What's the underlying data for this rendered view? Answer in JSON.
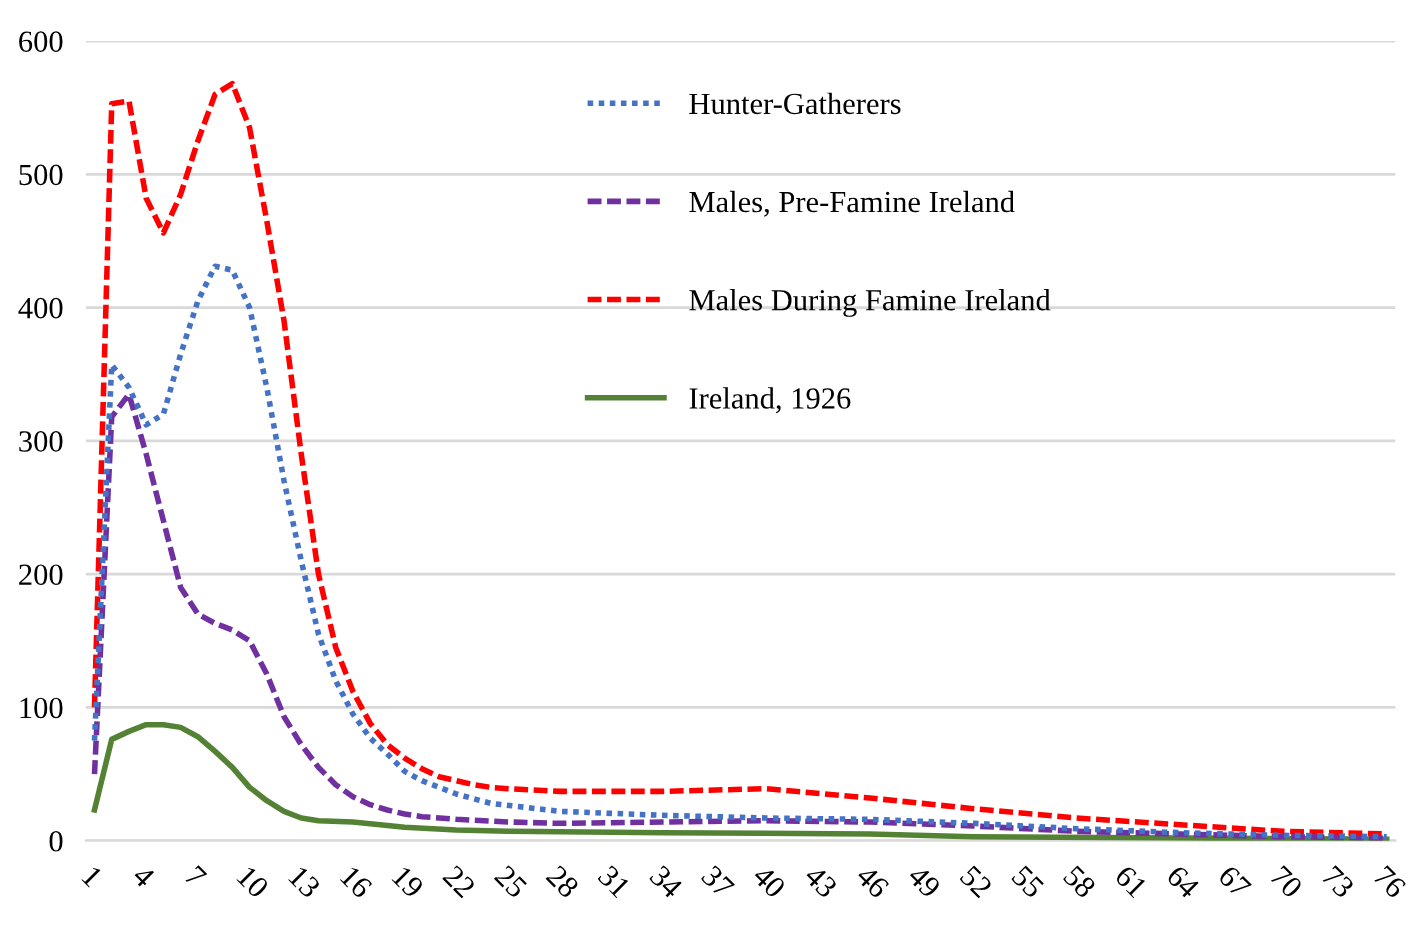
{
  "chart_data": {
    "type": "line",
    "xlim": [
      0.5,
      76.5
    ],
    "xticks": [
      1,
      4,
      7,
      10,
      13,
      16,
      19,
      22,
      25,
      28,
      31,
      34,
      37,
      40,
      43,
      46,
      49,
      52,
      55,
      58,
      61,
      64,
      67,
      70,
      73,
      76
    ],
    "ylim": [
      0,
      600
    ],
    "yticks": [
      0,
      100,
      200,
      300,
      400,
      500,
      600
    ],
    "grid": "y",
    "legend": "top",
    "series": [
      {
        "name": "Hunter-Gatherers",
        "color": "#4472c4",
        "line_style": "dotted",
        "x": [
          1,
          2,
          3,
          4,
          5,
          6,
          7,
          8,
          9,
          10,
          11,
          12,
          13,
          14,
          15,
          16,
          17,
          18,
          19,
          20,
          22,
          24,
          28,
          34,
          40,
          46,
          52,
          58,
          64,
          70,
          76
        ],
        "values": [
          75,
          357,
          340,
          312,
          320,
          365,
          405,
          431,
          428,
          400,
          340,
          270,
          210,
          155,
          120,
          95,
          77,
          65,
          52,
          45,
          35,
          28,
          22,
          19,
          17,
          16,
          13,
          9,
          6,
          4,
          3
        ]
      },
      {
        "name": "Males, Pre-Famine Ireland",
        "color": "#7030a0",
        "line_style": "dashed",
        "x": [
          1,
          2,
          3,
          4,
          5,
          6,
          7,
          8,
          9,
          10,
          11,
          12,
          13,
          14,
          15,
          16,
          17,
          18,
          19,
          20,
          22,
          25,
          28,
          34,
          40,
          46,
          52,
          58,
          64,
          70,
          76
        ],
        "values": [
          50,
          318,
          335,
          290,
          240,
          190,
          170,
          163,
          158,
          150,
          125,
          93,
          72,
          55,
          42,
          33,
          27,
          23,
          20,
          18,
          16,
          14,
          13,
          14,
          15,
          14,
          11,
          7,
          5,
          3,
          2
        ]
      },
      {
        "name": "Males During Famine Ireland",
        "color": "#ff0000",
        "line_style": "dashed",
        "x": [
          1,
          2,
          3,
          4,
          5,
          6,
          7,
          8,
          9,
          10,
          11,
          12,
          13,
          14,
          15,
          16,
          17,
          18,
          19,
          20,
          21,
          22,
          23,
          24,
          25,
          28,
          34,
          40,
          46,
          52,
          58,
          64,
          70,
          76
        ],
        "values": [
          100,
          553,
          555,
          482,
          456,
          485,
          525,
          560,
          568,
          535,
          465,
          390,
          290,
          200,
          145,
          112,
          88,
          72,
          62,
          54,
          48,
          45,
          42,
          40,
          39,
          37,
          37,
          39,
          32,
          24,
          17,
          12,
          7,
          5
        ]
      },
      {
        "name": "Ireland, 1926",
        "color": "#548235",
        "line_style": "solid",
        "x": [
          1,
          2,
          3,
          4,
          5,
          6,
          7,
          8,
          9,
          10,
          11,
          12,
          13,
          14,
          16,
          19,
          22,
          25,
          34,
          46,
          52,
          64,
          76
        ],
        "values": [
          23,
          76,
          82,
          87,
          87,
          85,
          78,
          67,
          55,
          40,
          30,
          22,
          17,
          15,
          14,
          10,
          8,
          7,
          6,
          5,
          3,
          2,
          1
        ]
      }
    ]
  }
}
